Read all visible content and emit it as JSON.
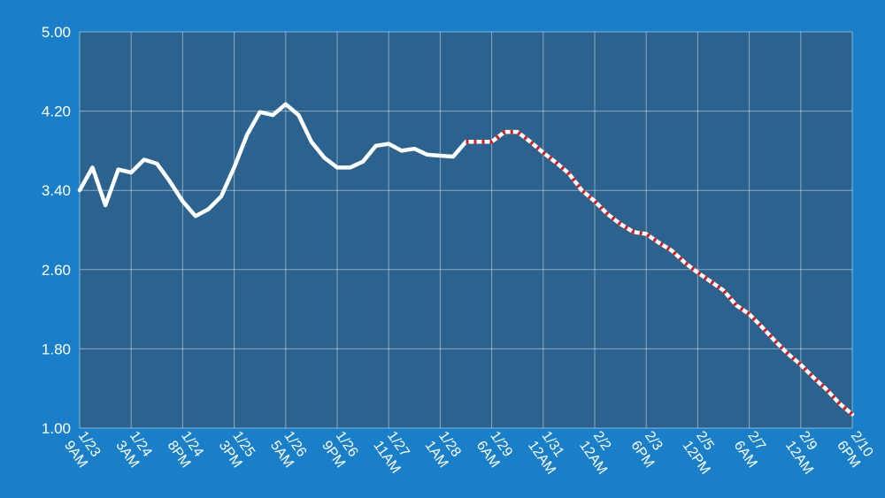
{
  "chart_data": {
    "type": "line",
    "x": [
      0,
      0.25,
      0.5,
      0.75,
      1,
      1.25,
      1.5,
      1.75,
      2,
      2.25,
      2.5,
      2.75,
      3,
      3.25,
      3.5,
      3.75,
      4,
      4.25,
      4.5,
      4.75,
      5,
      5.25,
      5.5,
      5.75,
      6,
      6.25,
      6.5,
      6.75,
      7,
      7.25,
      7.5,
      7.75,
      8,
      8.25,
      8.5,
      8.75,
      9,
      9.25,
      9.5,
      9.75,
      10,
      10.25,
      10.5,
      10.75,
      11,
      11.25,
      11.5,
      11.75,
      12,
      12.25,
      12.5,
      12.75,
      13,
      13.25,
      13.5,
      13.75,
      14,
      14.25,
      14.5,
      14.75,
      15
    ],
    "xlim": [
      0,
      15
    ],
    "xticks": [
      {
        "value": 0,
        "label": "1/23 9AM"
      },
      {
        "value": 1,
        "label": "1/24 3AM"
      },
      {
        "value": 2,
        "label": "1/24 8PM"
      },
      {
        "value": 3,
        "label": "1/25 3PM"
      },
      {
        "value": 4,
        "label": "1/26 5AM"
      },
      {
        "value": 5,
        "label": "1/26 9PM"
      },
      {
        "value": 6,
        "label": "1/27 11AM"
      },
      {
        "value": 7,
        "label": "1/28 1AM"
      },
      {
        "value": 8,
        "label": "1/29 6AM"
      },
      {
        "value": 9,
        "label": "1/31 12AM"
      },
      {
        "value": 10,
        "label": "2/2 12AM"
      },
      {
        "value": 11,
        "label": "2/3 6PM"
      },
      {
        "value": 12,
        "label": "2/5 12PM"
      },
      {
        "value": 13,
        "label": "2/7 6AM"
      },
      {
        "value": 14,
        "label": "2/9 12AM"
      },
      {
        "value": 15,
        "label": "2/10 6PM"
      }
    ],
    "ylim": [
      1,
      5
    ],
    "yticks": [
      {
        "value": 1,
        "label": "1.00"
      },
      {
        "value": 1.8,
        "label": "1.80"
      },
      {
        "value": 2.6,
        "label": "2.60"
      },
      {
        "value": 3.4,
        "label": "3.40"
      },
      {
        "value": 4.2,
        "label": "4.20"
      },
      {
        "value": 5,
        "label": "5.00"
      }
    ],
    "grid": true,
    "series": [
      {
        "color": "#ffffff",
        "values": [
          3.4,
          3.63,
          3.25,
          3.61,
          3.58,
          3.71,
          3.67,
          3.49,
          3.29,
          3.14,
          3.21,
          3.34,
          3.63,
          3.96,
          4.19,
          4.16,
          4.27,
          4.16,
          3.89,
          3.73,
          3.63,
          3.63,
          3.69,
          3.85,
          3.87,
          3.8,
          3.82,
          3.76,
          3.75,
          3.74,
          3.89,
          null,
          null,
          null,
          null,
          null,
          null,
          null,
          null,
          null,
          null,
          null,
          null,
          null,
          null,
          null,
          null,
          null,
          null,
          null,
          null,
          null,
          null,
          null,
          null,
          null,
          null,
          null,
          null,
          null,
          null
        ]
      },
      {
        "color": "#ffffff",
        "dash_color": "#e01818",
        "values": [
          null,
          null,
          null,
          null,
          null,
          null,
          null,
          null,
          null,
          null,
          null,
          null,
          null,
          null,
          null,
          null,
          null,
          null,
          null,
          null,
          null,
          null,
          null,
          null,
          null,
          null,
          null,
          null,
          null,
          null,
          3.89,
          3.89,
          3.89,
          3.99,
          3.99,
          3.89,
          3.78,
          3.68,
          3.57,
          3.4,
          3.29,
          3.16,
          3.06,
          2.98,
          2.96,
          2.87,
          2.79,
          2.67,
          2.57,
          2.48,
          2.39,
          2.24,
          2.15,
          2.02,
          1.88,
          1.75,
          1.64,
          1.51,
          1.39,
          1.25,
          1.14
        ]
      }
    ]
  }
}
